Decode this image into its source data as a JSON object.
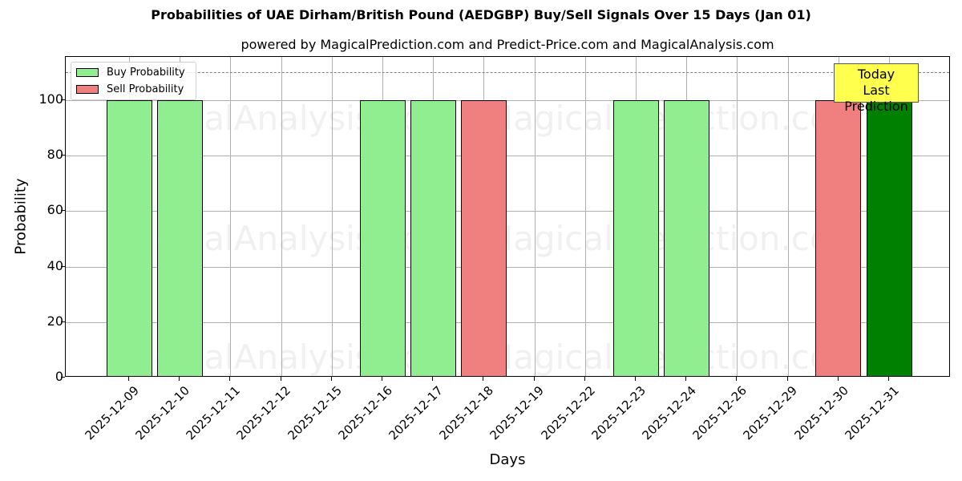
{
  "chart_data": {
    "type": "bar",
    "title": "Probabilities of UAE Dirham/British Pound (AEDGBP) Buy/Sell Signals Over 15 Days (Jan 01)",
    "subtitle": "powered by MagicalPrediction.com and Predict-Price.com and MagicalAnalysis.com",
    "xlabel": "Days",
    "ylabel": "Probability",
    "ylim": [
      0,
      115
    ],
    "yticks": [
      0,
      20,
      40,
      60,
      80,
      100
    ],
    "grid": true,
    "legend_position": "upper left",
    "reference_line": {
      "y": 110,
      "style": "dashed",
      "color": "#808080"
    },
    "categories": [
      "2025-12-09",
      "2025-12-10",
      "2025-12-11",
      "2025-12-12",
      "2025-12-15",
      "2025-12-16",
      "2025-12-17",
      "2025-12-18",
      "2025-12-19",
      "2025-12-22",
      "2025-12-23",
      "2025-12-24",
      "2025-12-26",
      "2025-12-29",
      "2025-12-30",
      "2025-12-31"
    ],
    "series": [
      {
        "name": "Buy Probability",
        "color": "#90ee90",
        "values": [
          100,
          100,
          0,
          0,
          0,
          100,
          100,
          0,
          0,
          0,
          100,
          100,
          0,
          0,
          0,
          100
        ]
      },
      {
        "name": "Sell Probability",
        "color": "#f08080",
        "values": [
          0,
          0,
          0,
          0,
          0,
          0,
          0,
          100,
          0,
          0,
          0,
          0,
          0,
          0,
          100,
          0
        ]
      }
    ],
    "highlight": {
      "category": "2025-12-31",
      "color": "#008000",
      "annotation": [
        "Today",
        "Last Prediction"
      ],
      "annotation_color": "#ffff4d"
    }
  },
  "watermarks": [
    "MagicalAnalysis.com",
    "MagicalPrediction.com"
  ]
}
